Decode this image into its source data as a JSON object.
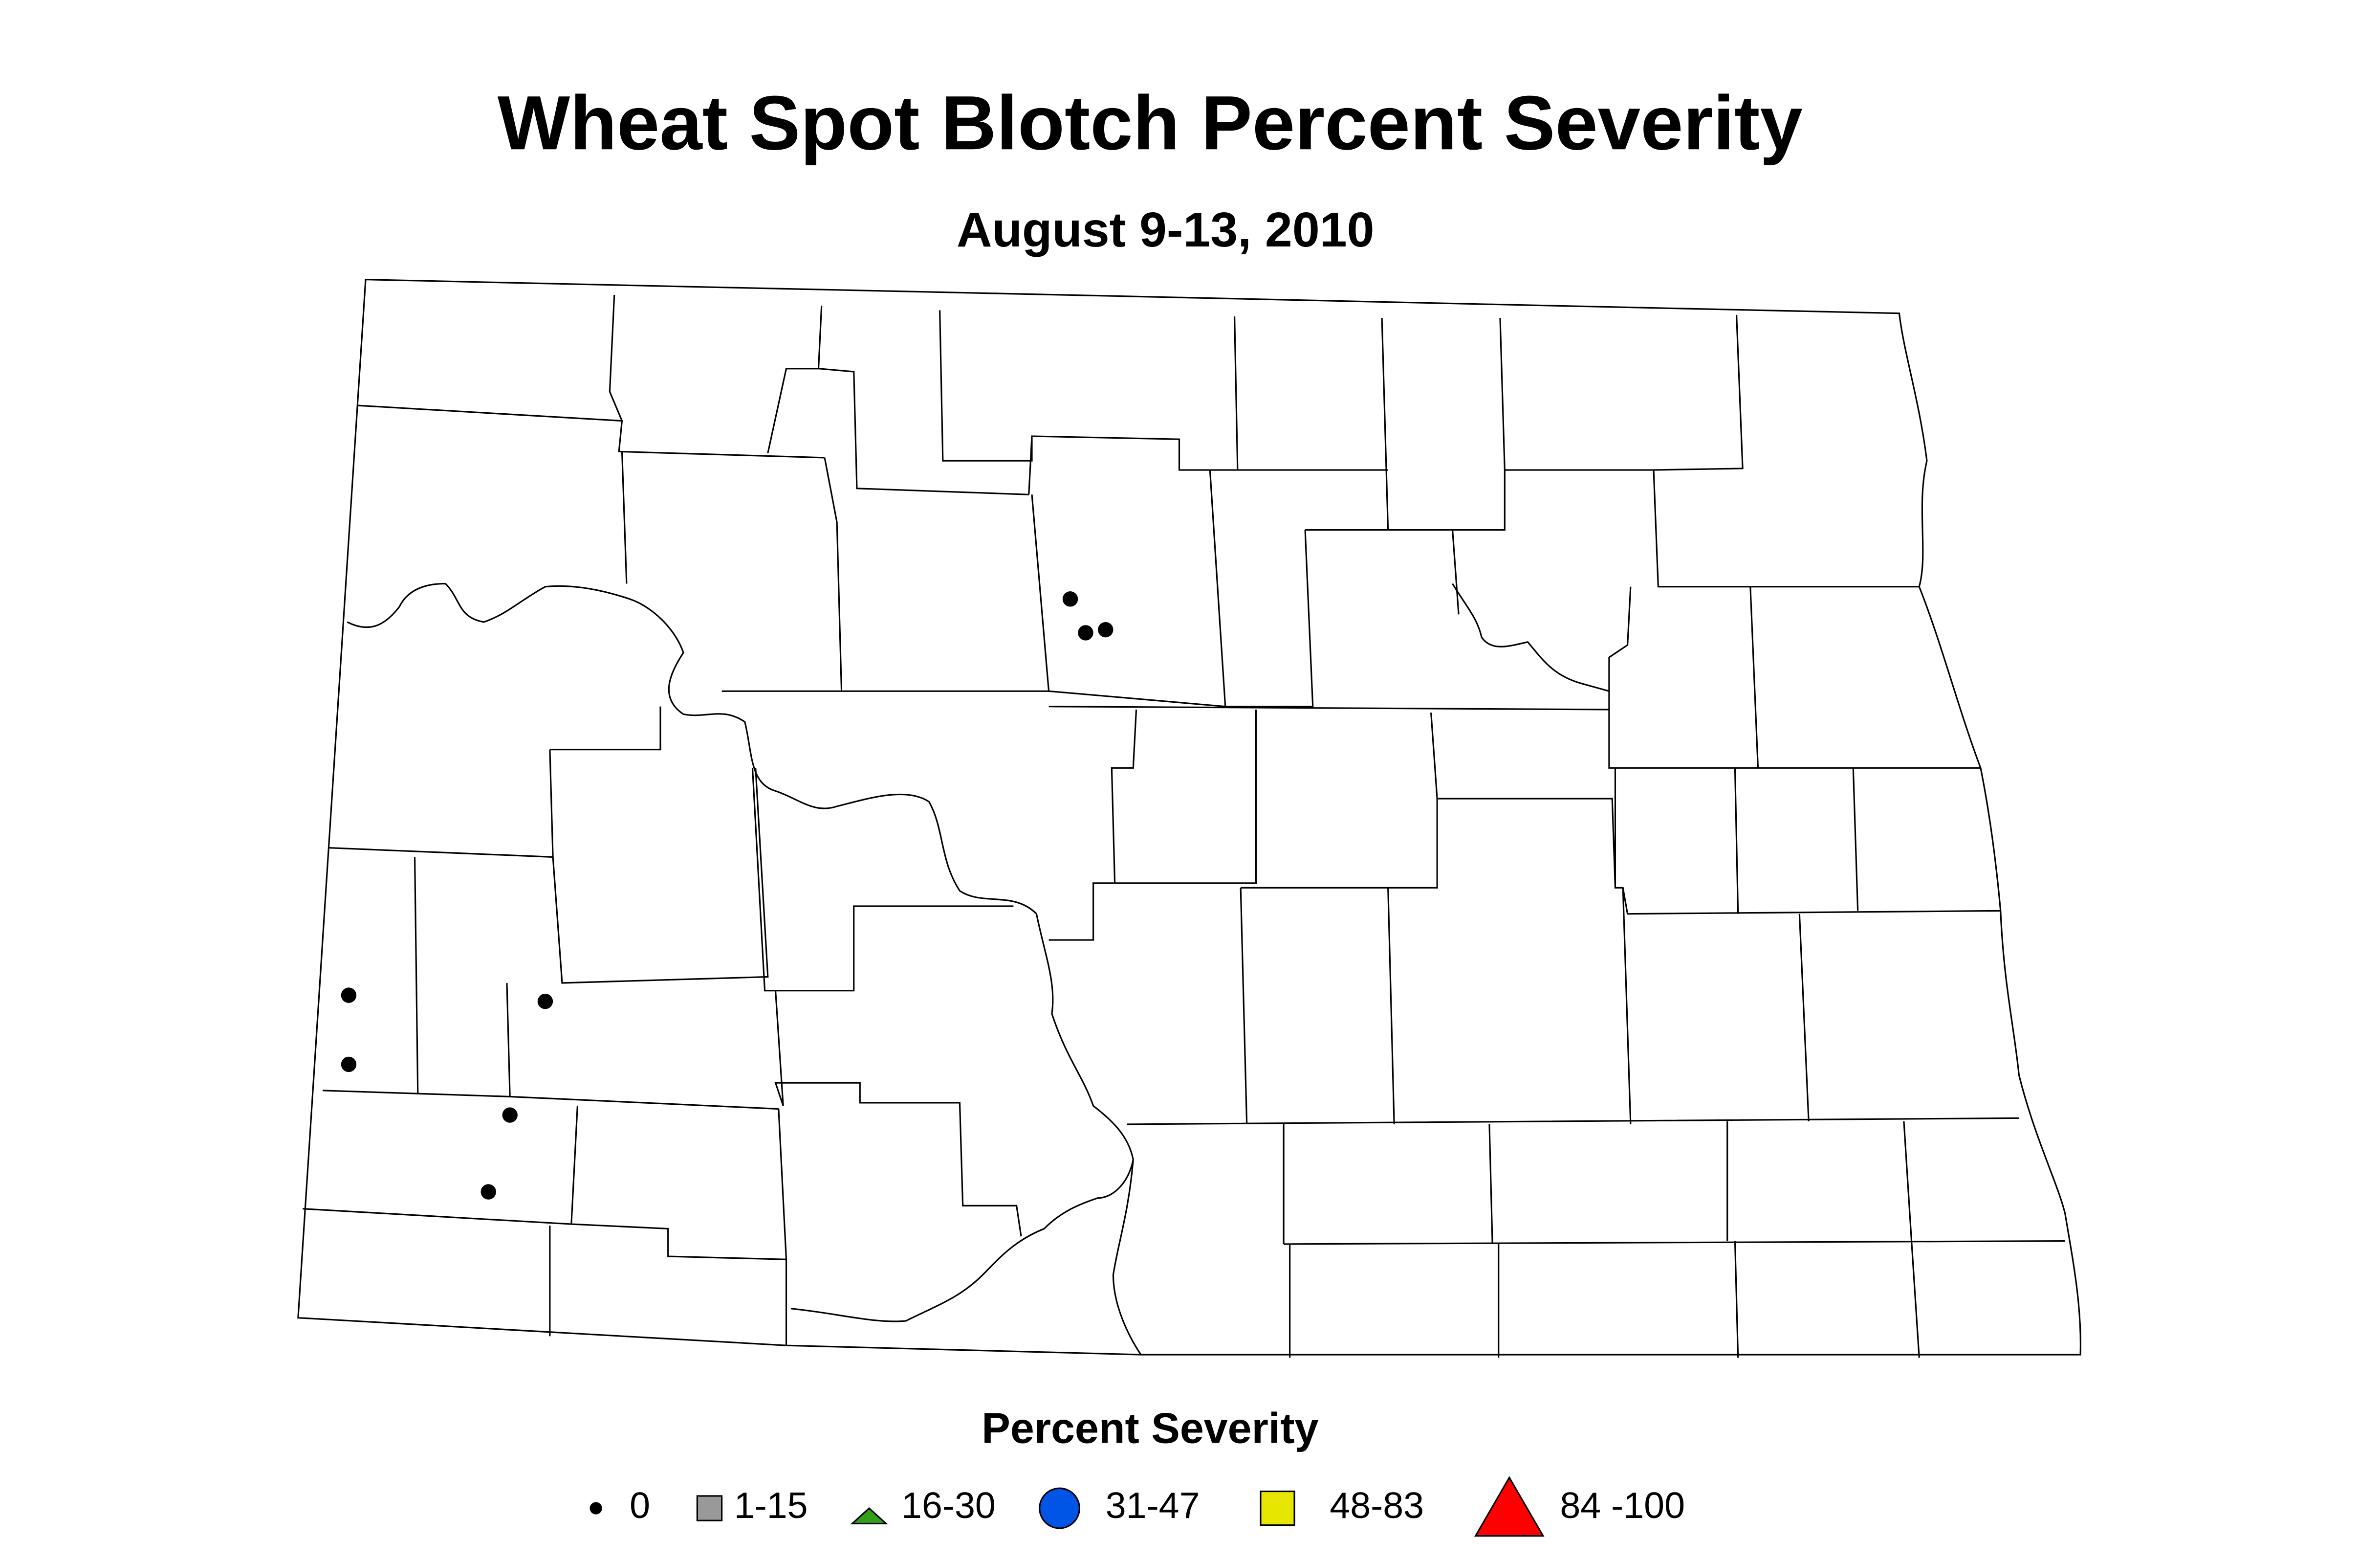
{
  "title": "Wheat Spot Blotch Percent Severity",
  "subtitle": "August 9-13, 2010",
  "legend": {
    "title": "Percent Severity",
    "items": [
      {
        "label": "0",
        "shape": "dot",
        "color": "#000000"
      },
      {
        "label": "1-15",
        "shape": "square",
        "color": "#999999"
      },
      {
        "label": "16-30",
        "shape": "triangle",
        "color": "#33a01a"
      },
      {
        "label": "31-47",
        "shape": "circle",
        "color": "#0055e6"
      },
      {
        "label": "48-83",
        "shape": "square",
        "color": "#e6e600"
      },
      {
        "label": "84 -100",
        "shape": "triangle",
        "color": "#ff0000"
      }
    ]
  },
  "observations": {
    "values": [
      0,
      0,
      0,
      0,
      0,
      0,
      0,
      0
    ],
    "color": "#000000"
  }
}
